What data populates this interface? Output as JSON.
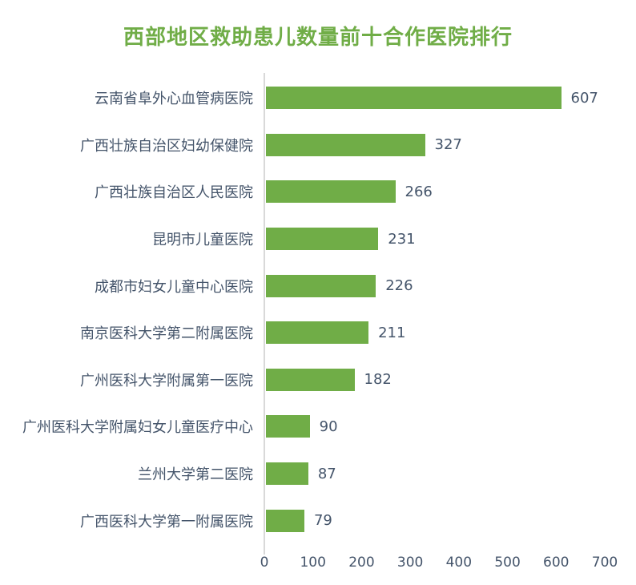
{
  "title": "西部地区救助患儿数量前十合作医院排行",
  "colors": {
    "bar": "#70AD47",
    "title": "#70AD47",
    "text": "#44546A",
    "axis_line": "#D9D9D9",
    "background": "#FFFFFF"
  },
  "chart_data": {
    "type": "bar",
    "orientation": "horizontal",
    "title": "西部地区救助患儿数量前十合作医院排行",
    "categories": [
      "云南省阜外心血管病医院",
      "广西壮族自治区妇幼保健院",
      "广西壮族自治区人民医院",
      "昆明市儿童医院",
      "成都市妇女儿童中心医院",
      "南京医科大学第二附属医院",
      "广州医科大学附属第一医院",
      "广州医科大学附属妇女儿童医疗中心",
      "兰州大学第二医院",
      "广西医科大学第一附属医院"
    ],
    "values": [
      607,
      327,
      266,
      231,
      226,
      211,
      182,
      90,
      87,
      79
    ],
    "xlabel": "",
    "ylabel": "",
    "xlim": [
      0,
      700
    ],
    "x_ticks": [
      0,
      100,
      200,
      300,
      400,
      500,
      600,
      700
    ],
    "grid": false,
    "legend": false,
    "value_labels": true
  }
}
